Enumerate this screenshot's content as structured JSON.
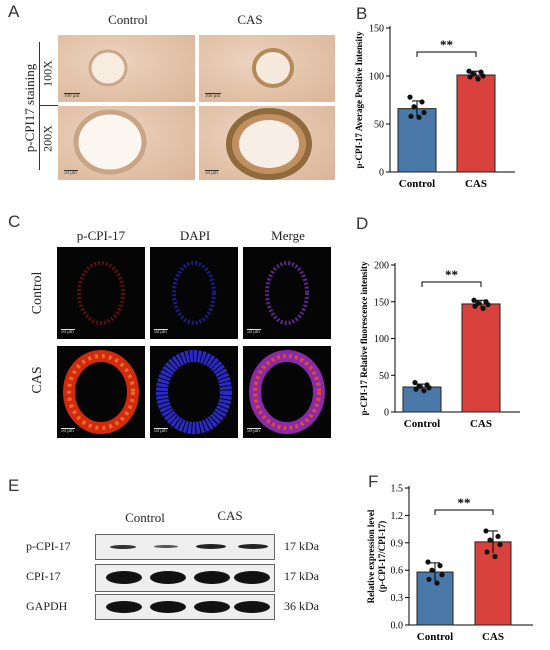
{
  "panel_letters": {
    "a": "A",
    "b": "B",
    "c": "C",
    "d": "D",
    "e": "E",
    "f": "F"
  },
  "panel_a": {
    "col_control": "Control",
    "col_cas": "CAS",
    "stain_label": "p-CPI17 staining",
    "row_100x": "100X",
    "row_200x": "200X",
    "scale_100": "100 μm",
    "scale_50": "50 μm"
  },
  "panel_c": {
    "col_pcpi": "p-CPI-17",
    "col_dapi": "DAPI",
    "col_merge": "Merge",
    "row_control": "Control",
    "row_cas": "CAS",
    "scale": "50 μm"
  },
  "panel_e": {
    "col_control": "Control",
    "col_cas": "CAS",
    "rows": [
      "p-CPI-17",
      "CPI-17",
      "GAPDH"
    ],
    "kda": [
      "17 kDa",
      "17 kDa",
      "36 kDa"
    ]
  },
  "colors": {
    "control_bar": "#4a78a8",
    "cas_bar": "#d9413c"
  },
  "chart_data": [
    {
      "panel": "B",
      "type": "bar",
      "categories": [
        "Control",
        "CAS"
      ],
      "values": [
        66,
        101
      ],
      "errors": [
        8,
        4
      ],
      "points": [
        [
          78,
          73,
          68,
          62,
          58,
          57
        ],
        [
          105,
          104,
          102,
          100,
          99,
          97
        ]
      ],
      "ylabel": "p-CPI-17 Average Positive Intensity",
      "yticks": [
        0,
        50,
        100,
        150
      ],
      "ylim": [
        0,
        150
      ],
      "significance": "**"
    },
    {
      "panel": "D",
      "type": "bar",
      "categories": [
        "Control",
        "CAS"
      ],
      "values": [
        34,
        147
      ],
      "errors": [
        4,
        5
      ],
      "points": [
        [
          40,
          37,
          35,
          33,
          31,
          29
        ],
        [
          152,
          150,
          148,
          146,
          144,
          141
        ]
      ],
      "ylabel": "p-CPI-17 Relative fluorescence intensity",
      "yticks": [
        0,
        50,
        100,
        150,
        200
      ],
      "ylim": [
        0,
        200
      ],
      "significance": "**"
    },
    {
      "panel": "F",
      "type": "bar",
      "categories": [
        "Control",
        "CAS"
      ],
      "values": [
        0.58,
        0.91
      ],
      "errors": [
        0.1,
        0.12
      ],
      "points": [
        [
          0.69,
          0.65,
          0.6,
          0.55,
          0.5,
          0.46
        ],
        [
          1.03,
          0.97,
          0.93,
          0.88,
          0.8,
          0.75
        ]
      ],
      "ylabel_lines": [
        "Relative expression level",
        "(p-CPI-17/CPI-17)"
      ],
      "yticks": [
        0.0,
        0.3,
        0.6,
        0.9,
        1.2,
        1.5
      ],
      "ylim": [
        0,
        1.5
      ],
      "significance": "**"
    }
  ]
}
